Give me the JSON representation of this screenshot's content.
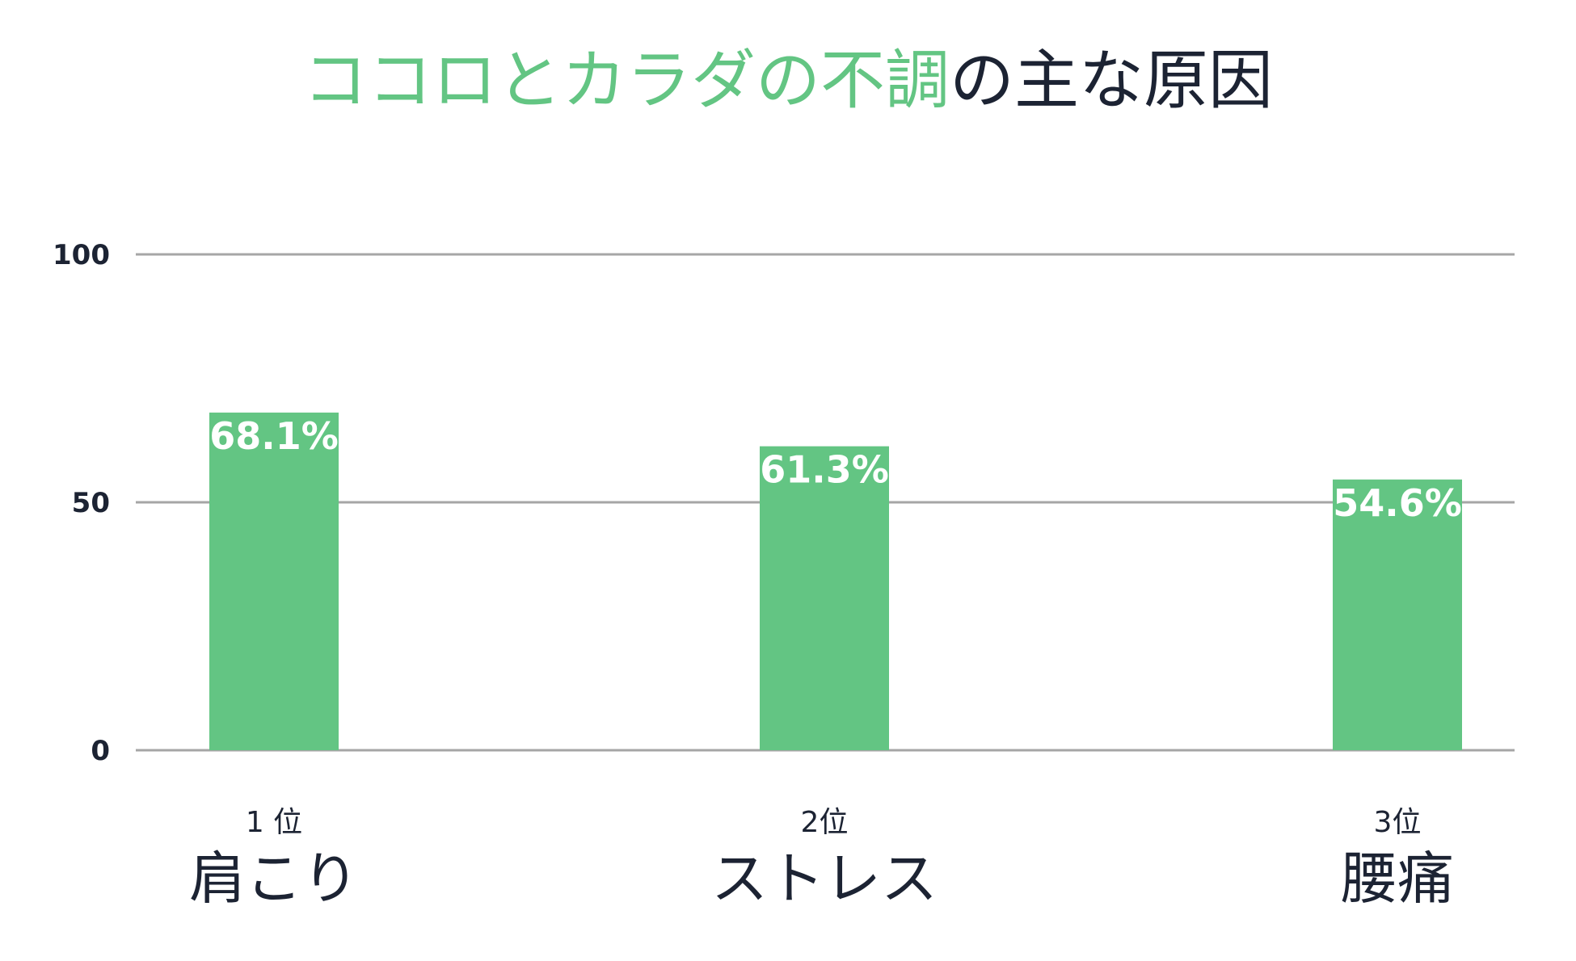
{
  "title": {
    "highlight": "ココロとカラダの不調",
    "rest": "の主な原因"
  },
  "colors": {
    "bar": "#63c583",
    "title_highlight": "#63c583",
    "text": "#1c2333",
    "grid": "#a6a6a6",
    "value_label": "#ffffff"
  },
  "chart_data": {
    "type": "bar",
    "title": "ココロとカラダの不調の主な原因",
    "categories": [
      "肩こり",
      "ストレス",
      "腰痛"
    ],
    "ranks": [
      "1 位",
      "2位",
      "3位"
    ],
    "values": [
      68.1,
      61.3,
      54.6
    ],
    "value_labels": [
      "68.1%",
      "61.3%",
      "54.6%"
    ],
    "yticks": [
      0,
      50,
      100
    ],
    "ylim": [
      0,
      100
    ],
    "xlabel": "",
    "ylabel": "",
    "grid": true,
    "legend": "none"
  }
}
